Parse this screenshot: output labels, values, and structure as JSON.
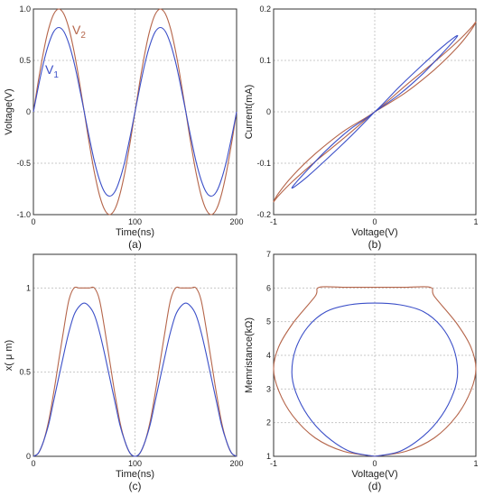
{
  "colors": {
    "red": "#b5654a",
    "blue": "#3b4fc8",
    "grid": "#c8c8c8",
    "axis": "#333333"
  },
  "chart_data": [
    {
      "id": "a",
      "type": "line",
      "panel_label": "(a)",
      "xlabel": "Time(ns)",
      "ylabel": "Voltage(V)",
      "xlim": [
        0,
        200
      ],
      "ylim": [
        -1.0,
        1.0
      ],
      "xticks": [
        "0",
        "100",
        "200"
      ],
      "yticks": [
        "-1.0",
        "-0.5",
        "0",
        "0.5",
        "1.0"
      ],
      "grid": true,
      "series": [
        {
          "name": "V2",
          "label_main": "V",
          "label_sub": "2",
          "color": "red",
          "x": [
            0,
            5,
            10,
            15,
            20,
            25,
            30,
            35,
            40,
            45,
            50,
            55,
            60,
            65,
            70,
            75,
            80,
            85,
            90,
            95,
            100,
            105,
            110,
            115,
            120,
            125,
            130,
            135,
            140,
            145,
            150,
            155,
            160,
            165,
            170,
            175,
            180,
            185,
            190,
            195,
            200
          ],
          "y": [
            0,
            0.309,
            0.588,
            0.809,
            0.951,
            1.0,
            0.951,
            0.809,
            0.588,
            0.309,
            0,
            -0.309,
            -0.588,
            -0.809,
            -0.951,
            -1.0,
            -0.951,
            -0.809,
            -0.588,
            -0.309,
            0,
            0.309,
            0.588,
            0.809,
            0.951,
            1.0,
            0.951,
            0.809,
            0.588,
            0.309,
            0,
            -0.309,
            -0.588,
            -0.809,
            -0.951,
            -1.0,
            -0.951,
            -0.809,
            -0.588,
            -0.309,
            0
          ]
        },
        {
          "name": "V1",
          "label_main": "V",
          "label_sub": "1",
          "color": "blue",
          "x": [
            0,
            5,
            10,
            15,
            20,
            25,
            30,
            35,
            40,
            45,
            50,
            55,
            60,
            65,
            70,
            75,
            80,
            85,
            90,
            95,
            100,
            105,
            110,
            115,
            120,
            125,
            130,
            135,
            140,
            145,
            150,
            155,
            160,
            165,
            170,
            175,
            180,
            185,
            190,
            195,
            200
          ],
          "y": [
            0,
            0.25,
            0.48,
            0.66,
            0.78,
            0.82,
            0.78,
            0.66,
            0.48,
            0.25,
            0,
            -0.25,
            -0.48,
            -0.66,
            -0.78,
            -0.82,
            -0.78,
            -0.66,
            -0.48,
            -0.25,
            0,
            0.25,
            0.48,
            0.66,
            0.78,
            0.82,
            0.78,
            0.66,
            0.48,
            0.25,
            0,
            -0.25,
            -0.48,
            -0.66,
            -0.78,
            -0.82,
            -0.78,
            -0.66,
            -0.48,
            -0.25,
            0
          ]
        }
      ]
    },
    {
      "id": "b",
      "type": "line",
      "panel_label": "(b)",
      "xlabel": "Voltage(V)",
      "ylabel": "Current(mA)",
      "xlim": [
        -1,
        1
      ],
      "ylim": [
        -0.2,
        0.2
      ],
      "xticks": [
        "-1",
        "0",
        "1"
      ],
      "yticks": [
        "-0.2",
        "-0.1",
        "0",
        "0.1",
        "0.2"
      ],
      "grid": true,
      "series": [
        {
          "name": "red loop",
          "color": "red",
          "x": [
            0,
            0.31,
            0.59,
            0.81,
            0.95,
            1.0,
            0.95,
            0.81,
            0.59,
            0.31,
            0,
            -0.31,
            -0.59,
            -0.81,
            -0.95,
            -1.0,
            -0.95,
            -0.81,
            -0.59,
            -0.31,
            0
          ],
          "y": [
            0,
            0.038,
            0.082,
            0.124,
            0.158,
            0.175,
            0.163,
            0.135,
            0.097,
            0.052,
            0,
            -0.038,
            -0.082,
            -0.124,
            -0.158,
            -0.175,
            -0.163,
            -0.135,
            -0.097,
            -0.052,
            0
          ]
        },
        {
          "name": "blue loop",
          "color": "blue",
          "x": [
            0,
            0.25,
            0.48,
            0.66,
            0.78,
            0.82,
            0.78,
            0.66,
            0.48,
            0.25,
            0,
            -0.25,
            -0.48,
            -0.66,
            -0.78,
            -0.82,
            -0.78,
            -0.66,
            -0.48,
            -0.25,
            0
          ],
          "y": [
            0,
            0.035,
            0.075,
            0.112,
            0.138,
            0.148,
            0.144,
            0.125,
            0.093,
            0.05,
            0,
            -0.035,
            -0.075,
            -0.112,
            -0.138,
            -0.148,
            -0.144,
            -0.125,
            -0.093,
            -0.05,
            0
          ]
        }
      ]
    },
    {
      "id": "c",
      "type": "line",
      "panel_label": "(c)",
      "xlabel": "Time(ns)",
      "ylabel": "x( μ m)",
      "xlim": [
        0,
        200
      ],
      "ylim": [
        0,
        1.2
      ],
      "xticks": [
        "0",
        "100",
        "200"
      ],
      "yticks": [
        "0",
        "0.5",
        "1"
      ],
      "ytick_values": [
        0,
        0.5,
        1
      ],
      "grid": true,
      "series": [
        {
          "name": "red",
          "color": "red",
          "x": [
            0,
            5,
            10,
            15,
            20,
            25,
            30,
            35,
            40,
            45,
            50,
            55,
            60,
            65,
            70,
            75,
            80,
            85,
            90,
            95,
            100,
            105,
            110,
            115,
            120,
            125,
            130,
            135,
            140,
            145,
            150,
            155,
            160,
            165,
            170,
            175,
            180,
            185,
            190,
            195,
            200
          ],
          "y": [
            0,
            0.02,
            0.09,
            0.21,
            0.38,
            0.57,
            0.76,
            0.93,
            1.0,
            1.0,
            1.0,
            1.0,
            1.0,
            0.93,
            0.76,
            0.57,
            0.38,
            0.21,
            0.09,
            0.02,
            0,
            0.02,
            0.09,
            0.21,
            0.38,
            0.57,
            0.76,
            0.93,
            1.0,
            1.0,
            1.0,
            1.0,
            1.0,
            0.93,
            0.76,
            0.57,
            0.38,
            0.21,
            0.09,
            0.02,
            0
          ]
        },
        {
          "name": "blue",
          "color": "blue",
          "x": [
            0,
            5,
            10,
            15,
            20,
            25,
            30,
            35,
            40,
            45,
            50,
            55,
            60,
            65,
            70,
            75,
            80,
            85,
            90,
            95,
            100,
            105,
            110,
            115,
            120,
            125,
            130,
            135,
            140,
            145,
            150,
            155,
            160,
            165,
            170,
            175,
            180,
            185,
            190,
            195,
            200
          ],
          "y": [
            0,
            0.02,
            0.09,
            0.19,
            0.33,
            0.47,
            0.61,
            0.74,
            0.84,
            0.89,
            0.91,
            0.89,
            0.84,
            0.74,
            0.61,
            0.47,
            0.33,
            0.19,
            0.09,
            0.02,
            0,
            0.02,
            0.09,
            0.19,
            0.33,
            0.47,
            0.61,
            0.74,
            0.84,
            0.89,
            0.91,
            0.89,
            0.84,
            0.74,
            0.61,
            0.47,
            0.33,
            0.19,
            0.09,
            0.02,
            0
          ]
        }
      ]
    },
    {
      "id": "d",
      "type": "line",
      "panel_label": "(d)",
      "xlabel": "Voltage(V)",
      "ylabel": "Memristance(kΩ)",
      "xlim": [
        -1,
        1
      ],
      "ylim": [
        1,
        7
      ],
      "xticks": [
        "-1",
        "0",
        "1"
      ],
      "yticks": [
        "1",
        "2",
        "3",
        "4",
        "5",
        "6",
        "7"
      ],
      "grid": true,
      "series": [
        {
          "name": "red",
          "color": "red",
          "x": [
            0,
            0.31,
            0.59,
            0.81,
            0.95,
            1.0,
            0.95,
            0.81,
            0.59,
            0.55,
            0.3,
            0,
            -0.3,
            -0.55,
            -0.59,
            -0.81,
            -0.95,
            -1.0,
            -0.95,
            -0.81,
            -0.59,
            -0.31,
            0
          ],
          "y": [
            1,
            1.15,
            1.55,
            2.2,
            2.95,
            3.6,
            4.25,
            4.95,
            5.75,
            6.02,
            6.02,
            6.02,
            6.02,
            6.02,
            5.75,
            4.95,
            4.25,
            3.6,
            2.95,
            2.2,
            1.55,
            1.15,
            1
          ]
        },
        {
          "name": "blue",
          "color": "blue",
          "x": [
            0,
            0.25,
            0.48,
            0.66,
            0.78,
            0.82,
            0.78,
            0.66,
            0.48,
            0.25,
            0,
            -0.25,
            -0.48,
            -0.66,
            -0.78,
            -0.82,
            -0.78,
            -0.66,
            -0.48,
            -0.25,
            0
          ],
          "y": [
            1,
            1.15,
            1.6,
            2.2,
            2.9,
            3.5,
            4.2,
            4.85,
            5.3,
            5.5,
            5.55,
            5.5,
            5.3,
            4.85,
            4.2,
            3.5,
            2.9,
            2.2,
            1.6,
            1.15,
            1
          ]
        }
      ]
    }
  ]
}
